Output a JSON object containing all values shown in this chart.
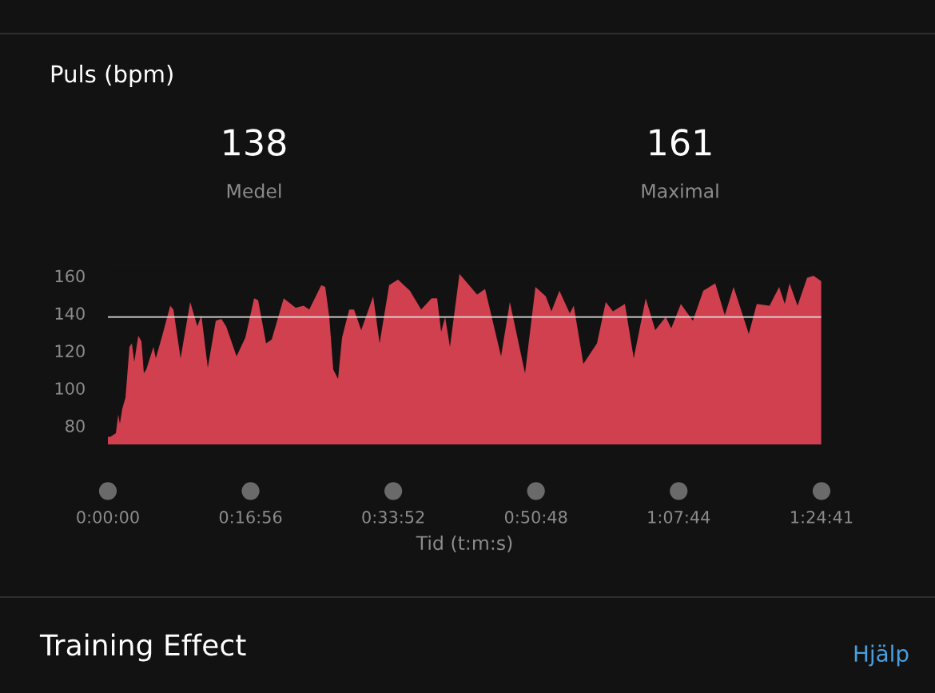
{
  "chart_data": {
    "type": "area",
    "title": "Puls (bpm)",
    "xlabel": "Tid (t:m:s)",
    "annotations": [
      "138",
      "Medel",
      "161",
      "Maximal",
      "Training Effect",
      "Hjälp"
    ],
    "x": [
      0,
      0.0047,
      0.0158,
      0.0205,
      0.0237,
      0.0284,
      0.0348,
      0.0427,
      0.0474,
      0.0522,
      0.0601,
      0.0664,
      0.0711,
      0.0759,
      0.0901,
      0.0948,
      0.1075,
      0.1233,
      0.1296,
      0.1438,
      0.1628,
      0.177,
      0.1849,
      0.1976,
      0.2134,
      0.2244,
      0.2339,
      0.2545,
      0.2718,
      0.2892,
      0.2971,
      0.3129,
      0.324,
      0.3477,
      0.3714,
      0.3872,
      0.3983,
      0.422,
      0.4299,
      0.4378,
      0.4457,
      0.4552,
      0.4631,
      0.4773,
      0.4868,
      0.501,
      0.5247,
      0.5374,
      0.5563,
      0.5737,
      0.5974,
      0.6196,
      0.6401,
      0.6512,
      0.6591,
      0.667,
      0.6765,
      0.6954,
      0.7144,
      0.7302,
      0.746,
      0.7776,
      0.795,
      0.825,
      0.8456,
      0.8661,
      0.8772,
      0.893,
      0.9135,
      0.9214,
      0.9404,
      0.9673,
      0.9847,
      0.9989,
      1.0226,
      1.04,
      1.0637,
      1.0826,
      1.1032,
      1.1142,
      1.1332,
      1.1569,
      1.1775,
      1.2012,
      1.2201,
      1.2375,
      1.2676,
      1.2833,
      1.3086,
      1.3276,
      1.3387,
      1.3482,
      1.364,
      1.3829,
      1.3956,
      1.41139
    ],
    "series": [
      {
        "color": "#d0404f",
        "values": [
          74,
          74,
          76,
          86,
          81,
          89,
          95,
          122,
          124,
          114,
          128,
          125,
          108,
          110,
          122,
          116,
          128,
          144,
          142,
          116,
          146,
          133,
          139,
          111,
          136,
          137,
          133,
          117,
          127,
          148,
          147,
          124,
          126,
          148,
          143,
          144,
          142,
          155,
          154,
          138,
          110,
          105,
          127,
          142,
          142,
          131,
          149,
          124,
          155,
          158,
          152,
          142,
          148,
          148,
          130,
          138,
          122,
          161,
          155,
          150,
          153,
          117,
          146,
          108,
          154,
          149,
          141,
          152,
          140,
          144,
          113,
          124,
          146,
          141,
          145,
          116,
          148,
          131,
          138,
          132,
          145,
          136,
          152,
          156,
          139,
          154,
          129,
          145,
          144,
          154,
          145,
          156,
          144,
          159,
          160,
          157
        ]
      }
    ],
    "xlim": [
      0,
      1.41139
    ],
    "xticks": [
      {
        "value": 0,
        "label": "0:00:00"
      },
      {
        "value": 0.28222,
        "label": "0:16:56"
      },
      {
        "value": 0.56444,
        "label": "0:33:52"
      },
      {
        "value": 0.84667,
        "label": "0:50:48"
      },
      {
        "value": 1.12889,
        "label": "1:07:44"
      },
      {
        "value": 1.41139,
        "label": "1:24:41"
      }
    ],
    "ylim": [
      70,
      163
    ],
    "yticks": [
      80,
      100,
      120,
      140,
      160
    ],
    "ref_lines": [
      {
        "axis": "y",
        "value": 138,
        "color": "#dddddd"
      }
    ],
    "grid": false,
    "legend": false
  }
}
